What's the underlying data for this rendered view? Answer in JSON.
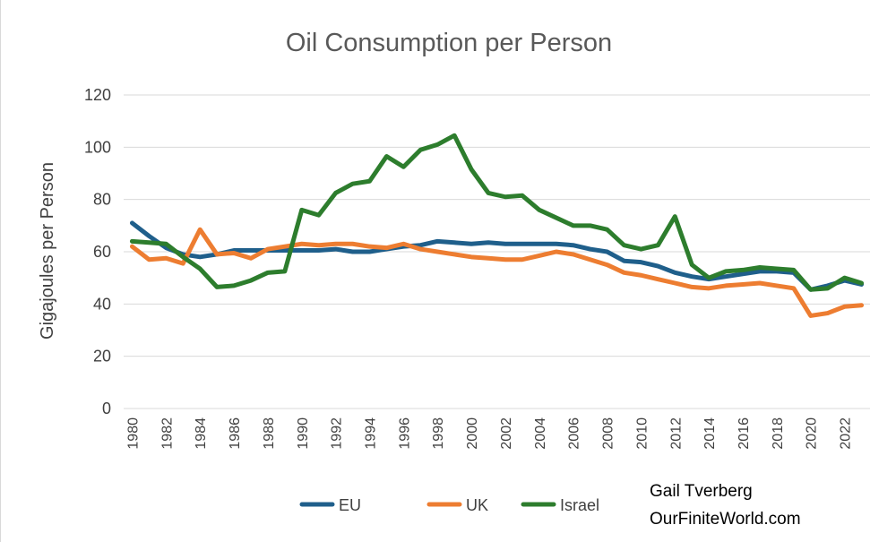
{
  "chart_data": {
    "type": "line",
    "title": "Oil Consumption per Person",
    "xlabel": "",
    "ylabel": "Gigajoules per Person",
    "ylim": [
      0,
      120
    ],
    "yticks": [
      0,
      20,
      40,
      60,
      80,
      100,
      120
    ],
    "x": [
      1980,
      1981,
      1982,
      1983,
      1984,
      1985,
      1986,
      1987,
      1988,
      1989,
      1990,
      1991,
      1992,
      1993,
      1994,
      1995,
      1996,
      1997,
      1998,
      1999,
      2000,
      2001,
      2002,
      2003,
      2004,
      2005,
      2006,
      2007,
      2008,
      2009,
      2010,
      2011,
      2012,
      2013,
      2014,
      2015,
      2016,
      2017,
      2018,
      2019,
      2020,
      2021,
      2022,
      2023
    ],
    "xtick_labels": [
      "1980",
      "1982",
      "1984",
      "1986",
      "1988",
      "1990",
      "1992",
      "1994",
      "1996",
      "1998",
      "2000",
      "2002",
      "2004",
      "2006",
      "2008",
      "2010",
      "2012",
      "2014",
      "2016",
      "2018",
      "2020",
      "2022"
    ],
    "grid": true,
    "legend_position": "bottom",
    "series": [
      {
        "name": "EU",
        "color": "#1f5f8b",
        "values": [
          71,
          66,
          61.5,
          59,
          58,
          59,
          60.5,
          60.5,
          60.5,
          60.5,
          60.5,
          60.5,
          61,
          60,
          60,
          61,
          62,
          62.5,
          64,
          63.5,
          63,
          63.5,
          63,
          63,
          63,
          63,
          62.5,
          61,
          60,
          56.5,
          56,
          54.5,
          52,
          50.5,
          49.5,
          50.5,
          51.5,
          52.5,
          52.5,
          52,
          45.5,
          47,
          49,
          47.5
        ]
      },
      {
        "name": "UK",
        "color": "#ed7d31",
        "values": [
          62,
          57,
          57.5,
          55.5,
          68.5,
          59,
          59.5,
          57.5,
          61,
          62,
          63,
          62.5,
          63,
          63,
          62,
          61.5,
          63,
          61,
          60,
          59,
          58,
          57.5,
          57,
          57,
          58.5,
          60,
          59,
          57,
          55,
          52,
          51,
          49.5,
          48,
          46.5,
          46,
          47,
          47.5,
          48,
          47,
          46,
          35.5,
          36.5,
          39,
          39.5
        ]
      },
      {
        "name": "Israel",
        "color": "#2d7d2d",
        "values": [
          64,
          63.5,
          63,
          58,
          53.5,
          46.5,
          47,
          49,
          52,
          52.5,
          76,
          74,
          82.5,
          86,
          87,
          96.5,
          92.5,
          99,
          101,
          104.5,
          91.5,
          82.5,
          81,
          81.5,
          76,
          73,
          70,
          70,
          68.5,
          62.5,
          61,
          62.5,
          73.5,
          55,
          50,
          52.5,
          53,
          54,
          53.5,
          53,
          45.5,
          46,
          50,
          48
        ]
      }
    ]
  },
  "credit": {
    "line1": "Gail Tverberg",
    "line2": "OurFiniteWorld.com"
  }
}
